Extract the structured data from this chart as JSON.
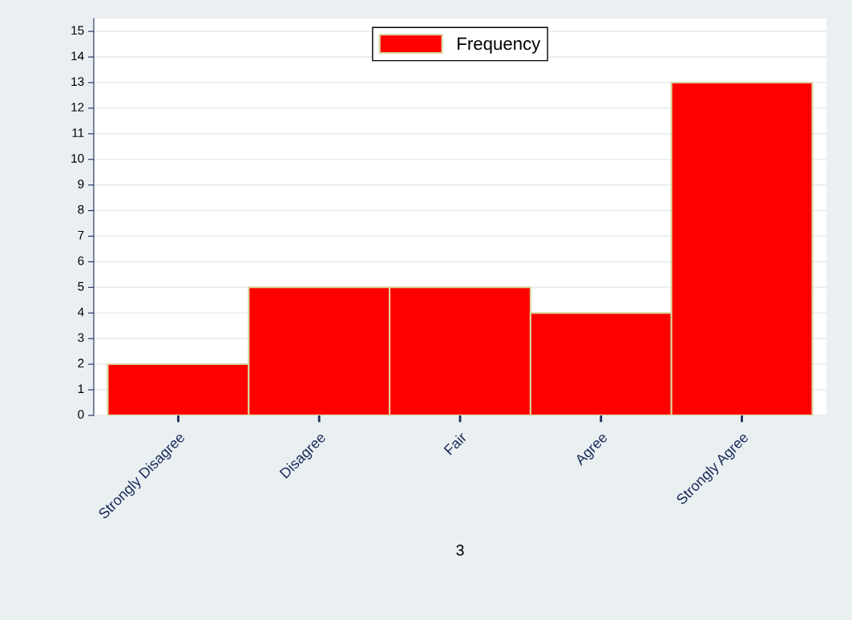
{
  "chart_data": {
    "type": "bar",
    "xlabel": "3",
    "categories": [
      "Strongly Disagree",
      "Disagree",
      "Fair",
      "Agree",
      "Strongly Agree"
    ],
    "series": [
      {
        "name": "Frequency",
        "color": "#ff0000",
        "values": [
          2,
          5,
          5,
          4,
          13
        ]
      }
    ],
    "ylim": [
      0,
      15.5
    ],
    "yticks": [
      0,
      1,
      2,
      3,
      4,
      5,
      6,
      7,
      8,
      9,
      10,
      11,
      12,
      13,
      14,
      15
    ],
    "grid": "y",
    "legend": "top"
  }
}
